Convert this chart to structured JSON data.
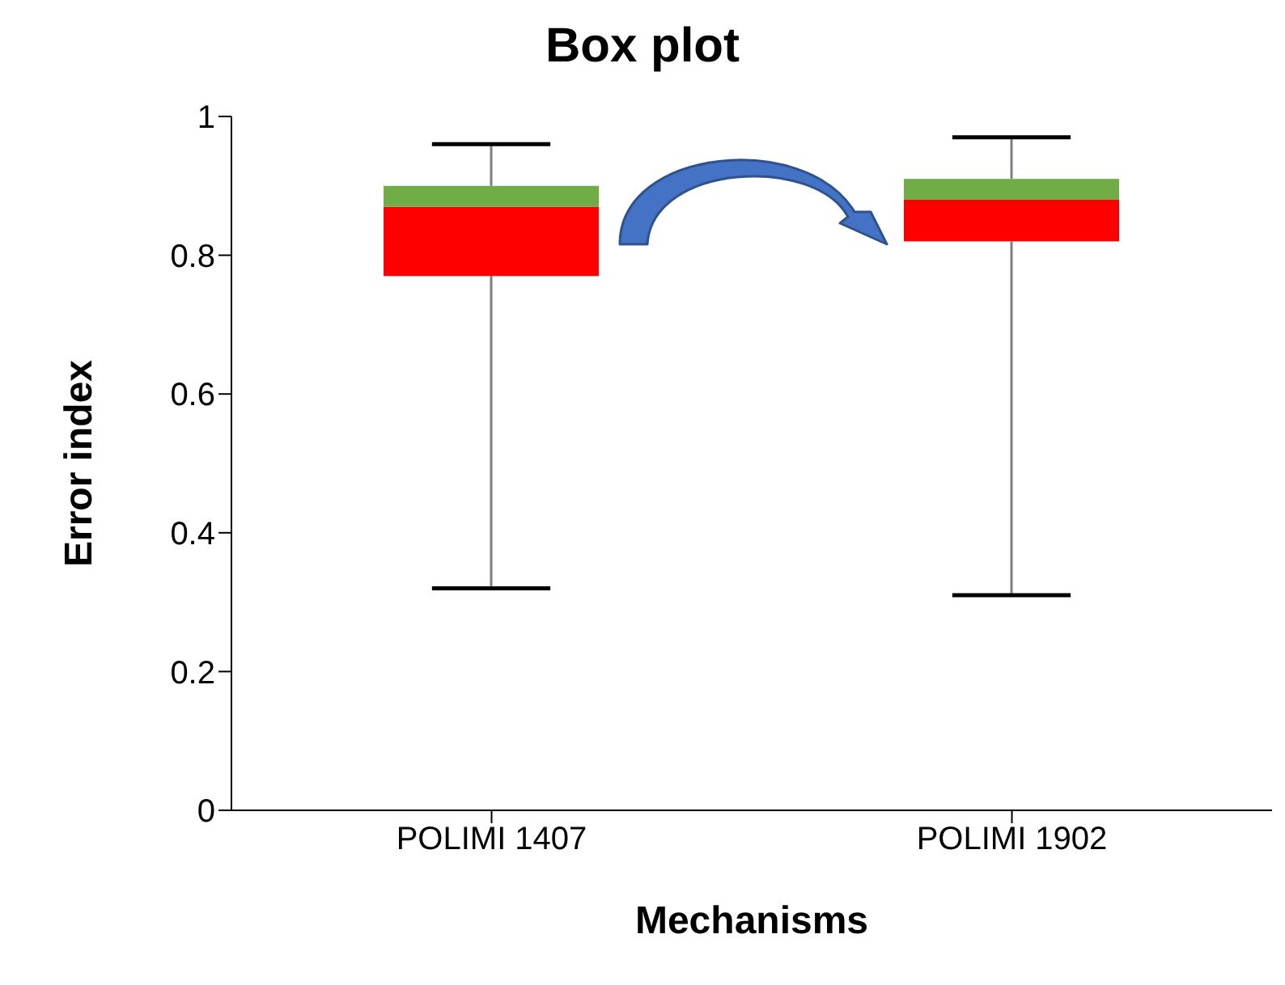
{
  "chart_data": {
    "type": "box",
    "title": "Box plot",
    "xlabel": "Mechanisms",
    "ylabel": "Error index",
    "categories": [
      "POLIMI 1407",
      "POLIMI 1902"
    ],
    "series": [
      {
        "color": "#ff0000",
        "boxes": [
          {
            "low": 0.32,
            "q1": 0.77,
            "median": 0.87,
            "q3": 0.9,
            "high": 0.96
          },
          {
            "low": 0.31,
            "q1": 0.82,
            "median": 0.88,
            "q3": 0.91,
            "high": 0.97
          }
        ]
      }
    ],
    "ylim": [
      0,
      1
    ],
    "yticks": [
      0,
      0.2,
      0.4,
      0.6,
      0.8,
      1
    ],
    "grid": false,
    "legend": false
  }
}
